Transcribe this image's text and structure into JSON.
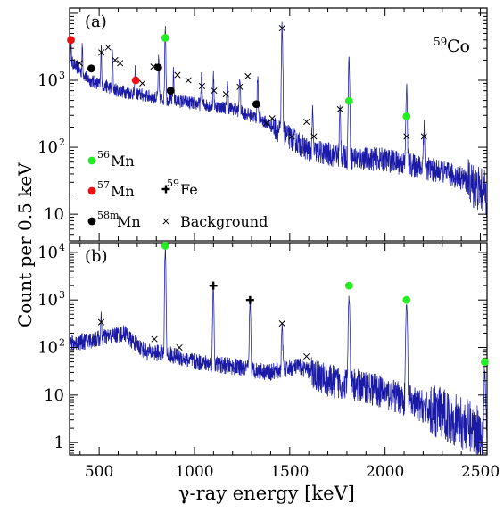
{
  "chart_data": {
    "figure": {
      "ylabel": "Count  per 0.5 keV",
      "xlabel": "γ-ray energy [keV]"
    },
    "xlim": [
      345,
      2535
    ],
    "xticks": [
      500,
      1000,
      1500,
      2000,
      2500
    ],
    "xtick_labels": [
      "500",
      "1000",
      "1500",
      "2000",
      "2500"
    ],
    "legend": {
      "placement": "bottom-left of panel (a)",
      "entries": [
        {
          "marker": "green-dot",
          "iso": "56",
          "name": "Mn"
        },
        {
          "marker": "red-dot",
          "iso": "57",
          "name": "Mn"
        },
        {
          "marker": "black-dot",
          "iso": "58m",
          "name": "Mn"
        },
        {
          "marker": "plus",
          "iso": "59",
          "name": "Fe"
        },
        {
          "marker": "cross",
          "iso": "",
          "name": "Background"
        }
      ]
    },
    "colors": {
      "spectrum": "#1a1aa6",
      "mn56": "#22ee22",
      "mn57": "#ee1111",
      "mn58m": "#000000"
    },
    "panels": [
      {
        "label": "(a)",
        "target_mass": "59",
        "target_symbol": "Co",
        "type": "line",
        "y_scale": "log",
        "ylim": [
          4,
          12000
        ],
        "y_ticks": [
          10,
          100,
          1000
        ],
        "y_tick_labels": [
          {
            "text": "10",
            "sup": ""
          },
          {
            "text": "10",
            "sup": "2"
          },
          {
            "text": "10",
            "sup": "3"
          }
        ],
        "baseline": [
          [
            345,
            2000
          ],
          [
            450,
            1000
          ],
          [
            600,
            700
          ],
          [
            800,
            550
          ],
          [
            1000,
            450
          ],
          [
            1200,
            380
          ],
          [
            1350,
            260
          ],
          [
            1500,
            140
          ],
          [
            1600,
            90
          ],
          [
            1800,
            70
          ],
          [
            2000,
            65
          ],
          [
            2200,
            50
          ],
          [
            2400,
            35
          ],
          [
            2535,
            20
          ]
        ],
        "peaks": [
          [
            352,
            1800
          ],
          [
            412,
            1900
          ],
          [
            511,
            2200
          ],
          [
            570,
            1700
          ],
          [
            690,
            900
          ],
          [
            812,
            1500
          ],
          [
            847,
            6200
          ],
          [
            890,
            800
          ],
          [
            1038,
            900
          ],
          [
            1100,
            700
          ],
          [
            1173,
            600
          ],
          [
            1238,
            800
          ],
          [
            1332,
            900
          ],
          [
            1460,
            6000
          ],
          [
            1620,
            250
          ],
          [
            1764,
            300
          ],
          [
            1811,
            2000
          ],
          [
            2113,
            700
          ],
          [
            2204,
            150
          ]
        ],
        "markers": [
          {
            "type": "mn57",
            "x": 352,
            "y": 4000
          },
          {
            "type": "mn57",
            "x": 692,
            "y": 1000
          },
          {
            "type": "mn58m",
            "x": 459,
            "y": 1500
          },
          {
            "type": "mn58m",
            "x": 810,
            "y": 1550
          },
          {
            "type": "mn58m",
            "x": 875,
            "y": 700
          },
          {
            "type": "mn58m",
            "x": 1325,
            "y": 440
          },
          {
            "type": "mn56",
            "x": 847,
            "y": 4300
          },
          {
            "type": "mn56",
            "x": 1811,
            "y": 490
          },
          {
            "type": "mn56",
            "x": 2113,
            "y": 290
          },
          {
            "type": "bkg",
            "x": 398,
            "y": 1800
          },
          {
            "type": "bkg",
            "x": 512,
            "y": 2600
          },
          {
            "type": "bkg",
            "x": 547,
            "y": 3100
          },
          {
            "type": "bkg",
            "x": 584,
            "y": 2000
          },
          {
            "type": "bkg",
            "x": 610,
            "y": 1800
          },
          {
            "type": "bkg",
            "x": 727,
            "y": 900
          },
          {
            "type": "bkg",
            "x": 785,
            "y": 1600
          },
          {
            "type": "bkg",
            "x": 911,
            "y": 1200
          },
          {
            "type": "bkg",
            "x": 968,
            "y": 1000
          },
          {
            "type": "bkg",
            "x": 1040,
            "y": 820
          },
          {
            "type": "bkg",
            "x": 1103,
            "y": 700
          },
          {
            "type": "bkg",
            "x": 1165,
            "y": 620
          },
          {
            "type": "bkg",
            "x": 1238,
            "y": 800
          },
          {
            "type": "bkg",
            "x": 1280,
            "y": 1150
          },
          {
            "type": "bkg",
            "x": 1377,
            "y": 230
          },
          {
            "type": "bkg",
            "x": 1408,
            "y": 270
          },
          {
            "type": "bkg",
            "x": 1460,
            "y": 6000
          },
          {
            "type": "bkg",
            "x": 1510,
            "y": 145
          },
          {
            "type": "bkg",
            "x": 1588,
            "y": 240
          },
          {
            "type": "bkg",
            "x": 1627,
            "y": 145
          },
          {
            "type": "bkg",
            "x": 1764,
            "y": 370
          },
          {
            "type": "bkg",
            "x": 2113,
            "y": 145
          },
          {
            "type": "bkg",
            "x": 2204,
            "y": 145
          }
        ]
      },
      {
        "label": "(b)",
        "type": "line",
        "y_scale": "log",
        "ylim": [
          0.55,
          16000
        ],
        "y_ticks": [
          1,
          10,
          100,
          1000,
          10000
        ],
        "y_tick_labels": [
          {
            "text": "1",
            "sup": ""
          },
          {
            "text": "10",
            "sup": ""
          },
          {
            "text": "10",
            "sup": "2"
          },
          {
            "text": "10",
            "sup": "3"
          },
          {
            "text": "10",
            "sup": "4"
          }
        ],
        "baseline": [
          [
            345,
            120
          ],
          [
            450,
            140
          ],
          [
            550,
            170
          ],
          [
            640,
            200
          ],
          [
            660,
            150
          ],
          [
            750,
            80
          ],
          [
            850,
            75
          ],
          [
            1000,
            50
          ],
          [
            1200,
            40
          ],
          [
            1400,
            30
          ],
          [
            1550,
            40
          ],
          [
            1700,
            20
          ],
          [
            1900,
            15
          ],
          [
            2100,
            8
          ],
          [
            2300,
            4
          ],
          [
            2535,
            1.5
          ]
        ],
        "peaks": [
          [
            511,
            300
          ],
          [
            847,
            12000
          ],
          [
            1099,
            1800
          ],
          [
            1292,
            1000
          ],
          [
            1460,
            280
          ],
          [
            1811,
            1200
          ],
          [
            2113,
            800
          ],
          [
            2523,
            30
          ]
        ],
        "markers": [
          {
            "type": "mn56",
            "x": 847,
            "y": 13800
          },
          {
            "type": "mn56",
            "x": 1811,
            "y": 2000
          },
          {
            "type": "mn56",
            "x": 2113,
            "y": 1000
          },
          {
            "type": "mn56",
            "x": 2523,
            "y": 50
          },
          {
            "type": "fe59",
            "x": 1099,
            "y": 2000
          },
          {
            "type": "fe59",
            "x": 1292,
            "y": 1000
          },
          {
            "type": "bkg",
            "x": 511,
            "y": 340
          },
          {
            "type": "bkg",
            "x": 790,
            "y": 150
          },
          {
            "type": "bkg",
            "x": 921,
            "y": 100
          },
          {
            "type": "bkg",
            "x": 1460,
            "y": 320
          },
          {
            "type": "bkg",
            "x": 1588,
            "y": 65
          }
        ]
      }
    ]
  }
}
